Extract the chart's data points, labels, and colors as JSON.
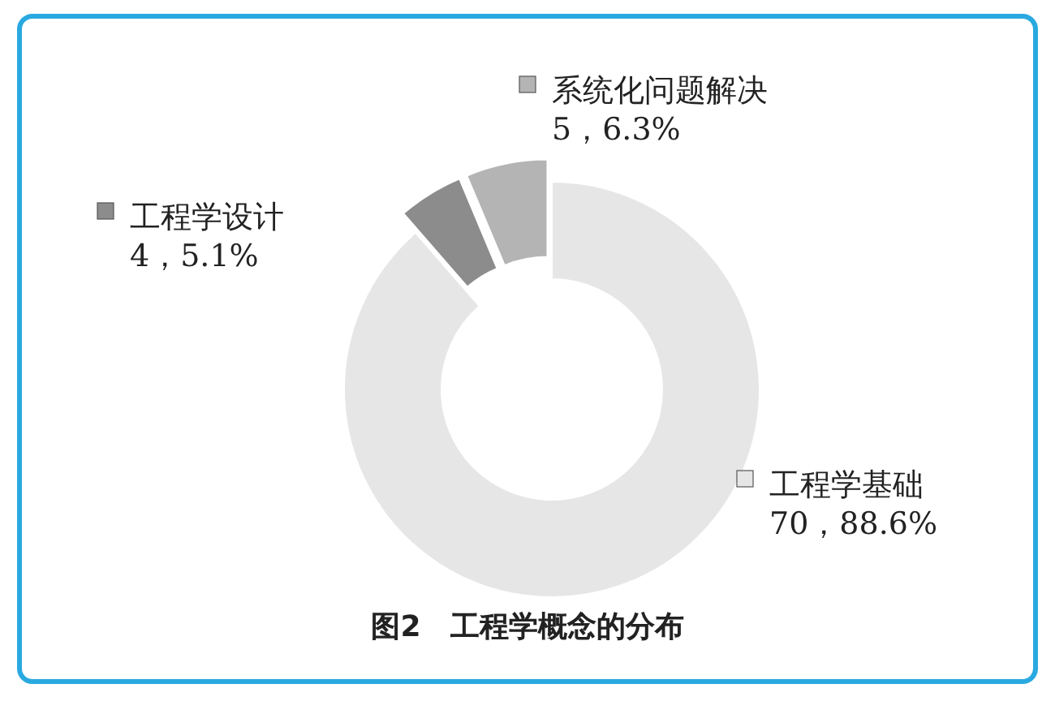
{
  "chart_data": {
    "type": "donut",
    "title": "图2　工程学概念的分布",
    "categories": [
      "工程学基础",
      "工程学设计",
      "系统化问题解决"
    ],
    "values": [
      70,
      4,
      5
    ],
    "value_labels": [
      "70，88.6%",
      "4，5.1%",
      "5，6.3%"
    ],
    "colors": [
      "#e6e6e6",
      "#8c8c8c",
      "#b4b4b4"
    ],
    "legend": "top"
  }
}
